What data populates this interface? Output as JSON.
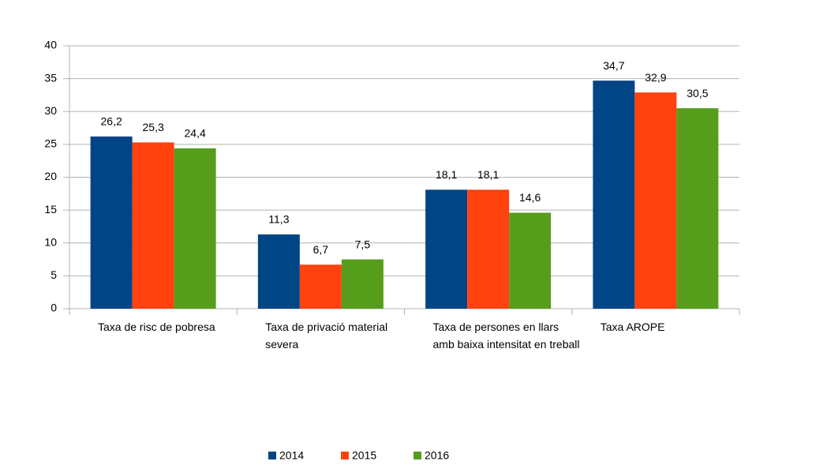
{
  "chart_data": {
    "type": "bar",
    "categories": [
      "Taxa de risc de pobresa",
      "Taxa de privació material severa",
      "Taxa de persones en llars amb baixa intensitat en treball",
      "Taxa AROPE"
    ],
    "series": [
      {
        "name": "2014",
        "color": "#004586",
        "values": [
          26.2,
          11.3,
          18.1,
          34.7
        ],
        "value_labels": [
          "26,2",
          "11,3",
          "18,1",
          "34,7"
        ]
      },
      {
        "name": "2015",
        "color": "#ff420e",
        "values": [
          25.3,
          6.7,
          18.1,
          32.9
        ],
        "value_labels": [
          "25,3",
          "6,7",
          "18,1",
          "32,9"
        ]
      },
      {
        "name": "2016",
        "color": "#579d1c",
        "values": [
          24.4,
          7.5,
          14.6,
          30.5
        ],
        "value_labels": [
          "24,4",
          "7,5",
          "14,6",
          "30,5"
        ]
      }
    ],
    "ylim": [
      0,
      40
    ],
    "yticks": [
      0,
      5,
      10,
      15,
      20,
      25,
      30,
      35,
      40
    ],
    "grid": true,
    "legend": "bottom"
  }
}
